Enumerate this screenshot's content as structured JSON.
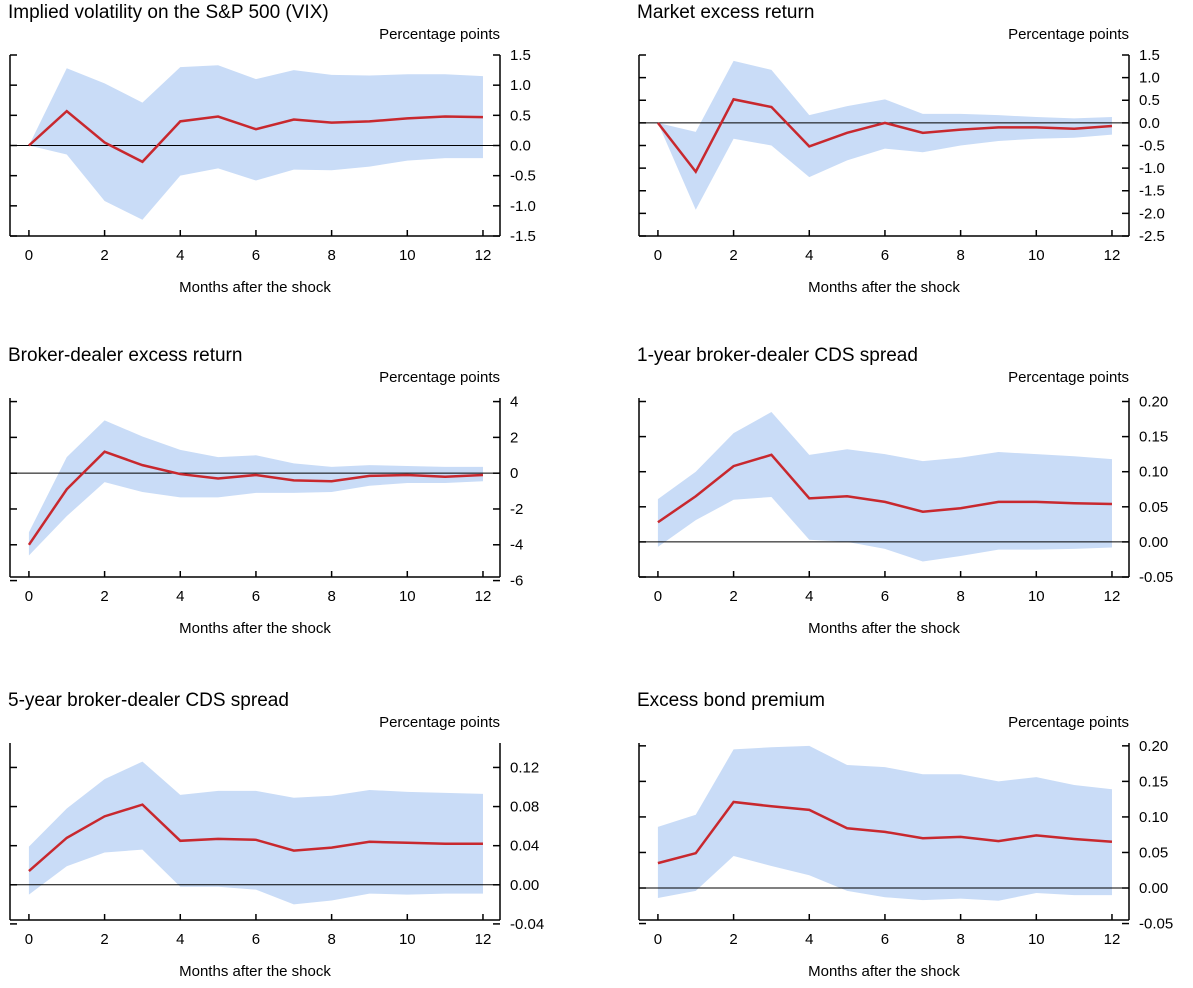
{
  "chart_data": [
    {
      "type": "line",
      "title": "Implied volatility on the S&P 500 (VIX)",
      "y_label": "Percentage points",
      "x_label": "Months after the shock",
      "x": [
        0,
        1,
        2,
        3,
        4,
        5,
        6,
        7,
        8,
        9,
        10,
        11,
        12
      ],
      "xlim": [
        -0.5,
        12.45
      ],
      "xticks": [
        0,
        2,
        4,
        6,
        8,
        10,
        12
      ],
      "ylim": [
        -1.5,
        1.5
      ],
      "yticks": [
        1.5,
        {
          "value": 1,
          "label": "1.0"
        },
        0.5,
        {
          "value": 0,
          "label": "0.0"
        },
        -0.5,
        {
          "value": -1,
          "label": "-1.0"
        },
        -1.5
      ],
      "color": "#c8282e",
      "band_color": "#c9dcf7",
      "zero_line": true,
      "values": [
        0,
        0.57,
        0.05,
        -0.27,
        0.4,
        0.48,
        0.27,
        0.43,
        0.38,
        0.4,
        0.45,
        0.48,
        0.47
      ],
      "upper": [
        0,
        1.28,
        1.03,
        0.71,
        1.3,
        1.33,
        1.1,
        1.25,
        1.17,
        1.16,
        1.18,
        1.18,
        1.15
      ],
      "lower": [
        0,
        -0.15,
        -0.92,
        -1.23,
        -0.5,
        -0.38,
        -0.58,
        -0.4,
        -0.41,
        -0.35,
        -0.25,
        -0.21,
        -0.21
      ]
    },
    {
      "type": "line",
      "title": "Market excess return",
      "y_label": "Percentage points",
      "x_label": "Months after the shock",
      "x": [
        0,
        1,
        2,
        3,
        4,
        5,
        6,
        7,
        8,
        9,
        10,
        11,
        12
      ],
      "xlim": [
        -0.5,
        12.45
      ],
      "xticks": [
        0,
        2,
        4,
        6,
        8,
        10,
        12
      ],
      "ylim": [
        -2.5,
        1.5
      ],
      "yticks": [
        1.5,
        {
          "value": 1,
          "label": "1.0"
        },
        0.5,
        {
          "value": 0,
          "label": "0.0"
        },
        -0.5,
        {
          "value": -1,
          "label": "-1.0"
        },
        -1.5,
        {
          "value": -2,
          "label": "-2.0"
        },
        -2.5
      ],
      "color": "#c8282e",
      "band_color": "#c9dcf7",
      "zero_line": true,
      "values": [
        0,
        -1.08,
        0.52,
        0.35,
        -0.52,
        -0.22,
        0,
        -0.22,
        -0.15,
        -0.1,
        -0.1,
        -0.13,
        -0.07
      ],
      "upper": [
        0,
        -0.2,
        1.37,
        1.17,
        0.17,
        0.37,
        0.52,
        0.2,
        0.2,
        0.17,
        0.13,
        0.1,
        0.13
      ],
      "lower": [
        0,
        -1.92,
        -0.35,
        -0.5,
        -1.2,
        -0.83,
        -0.57,
        -0.65,
        -0.5,
        -0.4,
        -0.35,
        -0.33,
        -0.26
      ]
    },
    {
      "type": "line",
      "title": "Broker-dealer excess return",
      "y_label": "Percentage points",
      "x_label": "Months after the shock",
      "x": [
        0,
        1,
        2,
        3,
        4,
        5,
        6,
        7,
        8,
        9,
        10,
        11,
        12
      ],
      "xlim": [
        -0.5,
        12.45
      ],
      "xticks": [
        0,
        2,
        4,
        6,
        8,
        10,
        12
      ],
      "ylim": [
        -5.8,
        4.2
      ],
      "yticks": [
        4,
        2,
        0,
        -2,
        -4,
        -6
      ],
      "color": "#c8282e",
      "band_color": "#c9dcf7",
      "zero_line": true,
      "values": [
        -4,
        -0.9,
        1.2,
        0.45,
        -0.05,
        -0.3,
        -0.1,
        -0.4,
        -0.45,
        -0.15,
        -0.1,
        -0.2,
        -0.1
      ],
      "upper": [
        -3.3,
        0.9,
        2.95,
        2.05,
        1.3,
        0.9,
        1.0,
        0.55,
        0.35,
        0.45,
        0.4,
        0.35,
        0.35
      ],
      "lower": [
        -4.6,
        -2.4,
        -0.5,
        -1.05,
        -1.35,
        -1.35,
        -1.1,
        -1.1,
        -1.05,
        -0.7,
        -0.55,
        -0.55,
        -0.45
      ]
    },
    {
      "type": "line",
      "title": "1-year broker-dealer CDS spread",
      "y_label": "Percentage points",
      "x_label": "Months after the shock",
      "x": [
        0,
        1,
        2,
        3,
        4,
        5,
        6,
        7,
        8,
        9,
        10,
        11,
        12
      ],
      "xlim": [
        -0.5,
        12.45
      ],
      "xticks": [
        0,
        2,
        4,
        6,
        8,
        10,
        12
      ],
      "ylim": [
        -0.05,
        0.205
      ],
      "yticks": [
        {
          "value": 0.2,
          "label": "0.20"
        },
        0.15,
        {
          "value": 0.1,
          "label": "0.10"
        },
        0.05,
        {
          "value": 0,
          "label": "0.00"
        },
        -0.05
      ],
      "color": "#c8282e",
      "band_color": "#c9dcf7",
      "zero_line": true,
      "values": [
        0.028,
        0.065,
        0.108,
        0.124,
        0.062,
        0.065,
        0.057,
        0.043,
        0.048,
        0.057,
        0.057,
        0.055,
        0.054
      ],
      "upper": [
        0.061,
        0.1,
        0.155,
        0.185,
        0.124,
        0.132,
        0.125,
        0.115,
        0.12,
        0.128,
        0.125,
        0.122,
        0.118
      ],
      "lower": [
        -0.007,
        0.031,
        0.06,
        0.064,
        0.003,
        0,
        -0.01,
        -0.028,
        -0.02,
        -0.011,
        -0.011,
        -0.01,
        -0.008
      ]
    },
    {
      "type": "line",
      "title": "5-year broker-dealer CDS spread",
      "y_label": "Percentage points",
      "x_label": "Months after the shock",
      "x": [
        0,
        1,
        2,
        3,
        4,
        5,
        6,
        7,
        8,
        9,
        10,
        11,
        12
      ],
      "xlim": [
        -0.5,
        12.45
      ],
      "xticks": [
        0,
        2,
        4,
        6,
        8,
        10,
        12
      ],
      "ylim": [
        -0.036,
        0.145
      ],
      "yticks": [
        0.12,
        0.08,
        0.04,
        {
          "value": 0,
          "label": "0.00"
        },
        -0.04
      ],
      "color": "#c8282e",
      "band_color": "#c9dcf7",
      "zero_line": true,
      "values": [
        0.014,
        0.048,
        0.07,
        0.082,
        0.045,
        0.047,
        0.046,
        0.035,
        0.038,
        0.044,
        0.043,
        0.042,
        0.042
      ],
      "upper": [
        0.039,
        0.078,
        0.108,
        0.126,
        0.092,
        0.096,
        0.096,
        0.089,
        0.091,
        0.097,
        0.095,
        0.094,
        0.093
      ],
      "lower": [
        -0.01,
        0.019,
        0.033,
        0.036,
        -0.002,
        -0.002,
        -0.005,
        -0.02,
        -0.016,
        -0.009,
        -0.01,
        -0.009,
        -0.009
      ]
    },
    {
      "type": "line",
      "title": "Excess bond premium",
      "y_label": "Percentage points",
      "x_label": "Months after the shock",
      "x": [
        0,
        1,
        2,
        3,
        4,
        5,
        6,
        7,
        8,
        9,
        10,
        11,
        12
      ],
      "xlim": [
        -0.5,
        12.45
      ],
      "xticks": [
        0,
        2,
        4,
        6,
        8,
        10,
        12
      ],
      "ylim": [
        -0.045,
        0.204
      ],
      "yticks": [
        {
          "value": 0.2,
          "label": "0.20"
        },
        0.15,
        {
          "value": 0.1,
          "label": "0.10"
        },
        0.05,
        {
          "value": 0,
          "label": "0.00"
        },
        -0.05
      ],
      "color": "#c8282e",
      "band_color": "#c9dcf7",
      "zero_line": true,
      "values": [
        0.035,
        0.049,
        0.121,
        0.115,
        0.11,
        0.084,
        0.079,
        0.07,
        0.072,
        0.066,
        0.074,
        0.069,
        0.065
      ],
      "upper": [
        0.086,
        0.103,
        0.195,
        0.198,
        0.2,
        0.173,
        0.17,
        0.16,
        0.16,
        0.15,
        0.156,
        0.145,
        0.139
      ],
      "lower": [
        -0.014,
        -0.004,
        0.045,
        0.031,
        0.018,
        -0.004,
        -0.013,
        -0.017,
        -0.015,
        -0.018,
        -0.007,
        -0.01,
        -0.01
      ]
    }
  ]
}
